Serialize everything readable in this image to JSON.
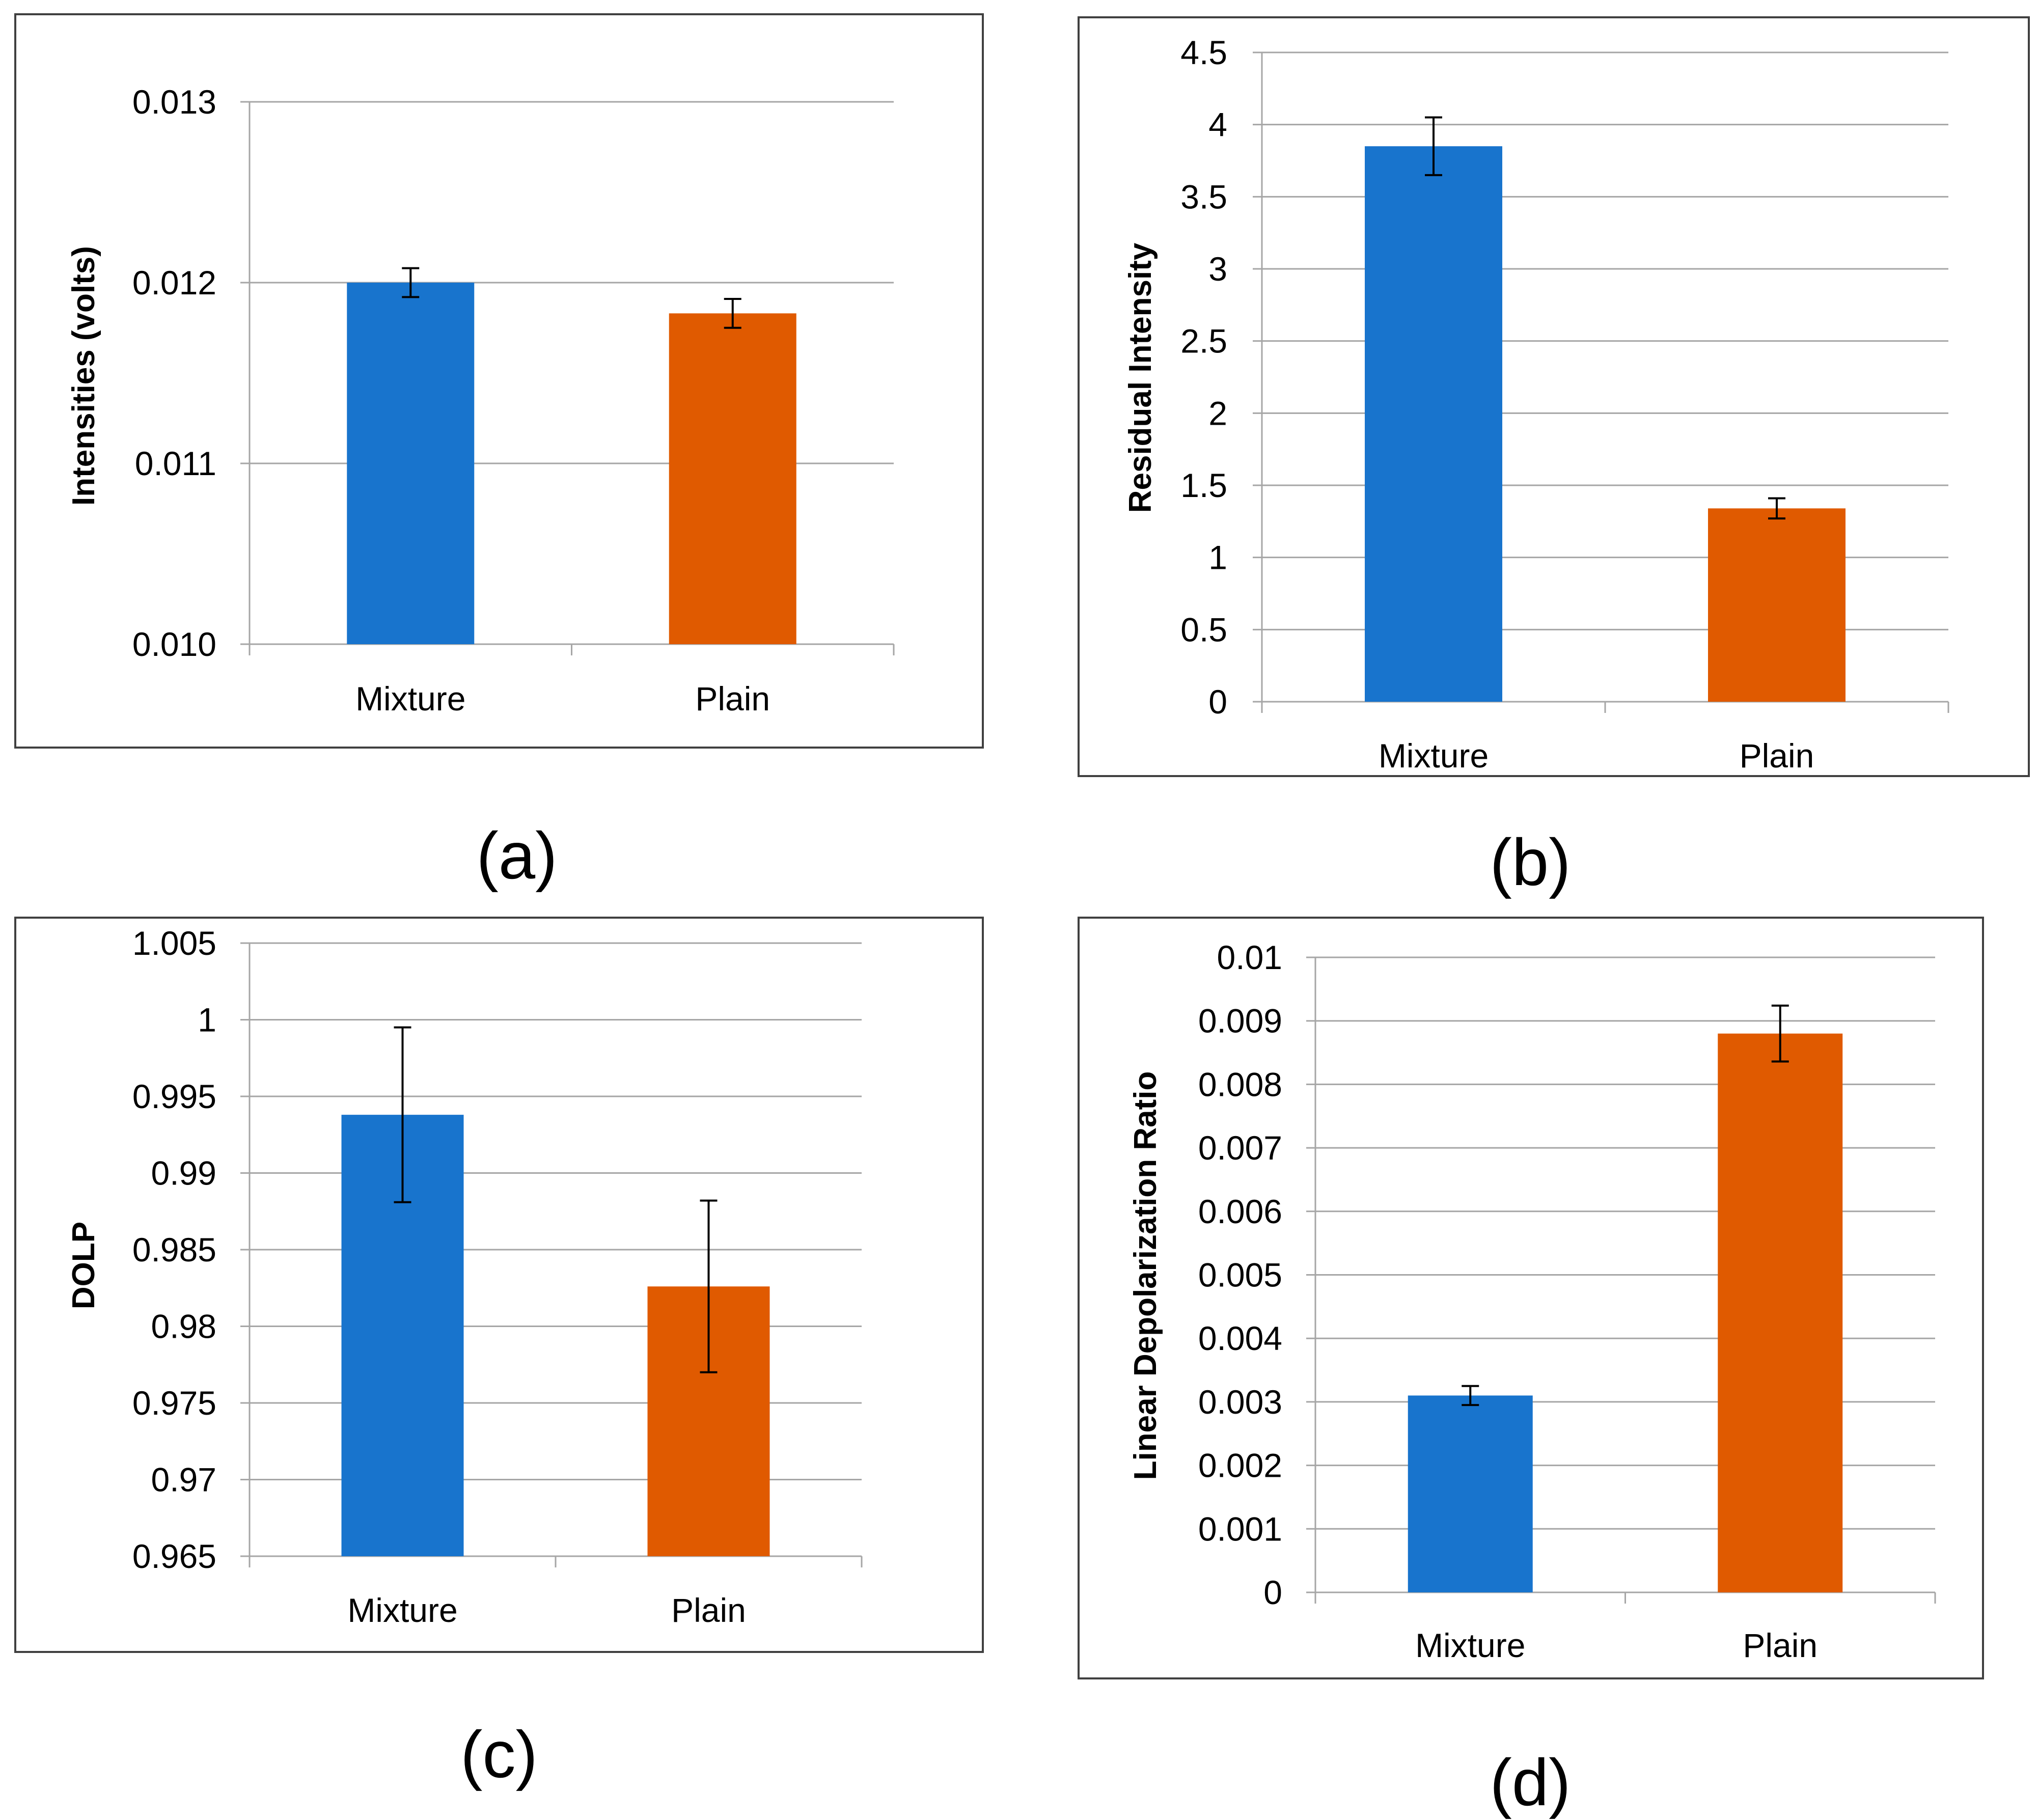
{
  "colors": {
    "Mixture": "#1874CD",
    "Plain": "#E05A00",
    "grid": "#a6a6a6",
    "frame": "#404040"
  },
  "chart_data": [
    {
      "type": "bar",
      "panel": "(a)",
      "categories": [
        "Mixture",
        "Plain"
      ],
      "values": [
        0.012,
        0.01183
      ],
      "errors": [
        8e-05,
        8e-05
      ],
      "title": "",
      "xlabel": "",
      "ylabel": "Intensities (volts)",
      "ylim": [
        0.01,
        0.013
      ],
      "ticks": [
        0.01,
        0.011,
        0.012,
        0.013
      ],
      "tick_labels": [
        "0.010",
        "0.011",
        "0.012",
        "0.013"
      ],
      "grid": true
    },
    {
      "type": "bar",
      "panel": "(b)",
      "categories": [
        "Mixture",
        "Plain"
      ],
      "values": [
        3.85,
        1.34
      ],
      "errors": [
        0.2,
        0.07
      ],
      "title": "",
      "xlabel": "",
      "ylabel": "Residual Intensity",
      "ylim": [
        0,
        4.5
      ],
      "ticks": [
        0,
        0.5,
        1,
        1.5,
        2,
        2.5,
        3,
        3.5,
        4,
        4.5
      ],
      "tick_labels": [
        "0",
        "0.5",
        "1",
        "1.5",
        "2",
        "2.5",
        "3",
        "3.5",
        "4",
        "4.5"
      ],
      "grid": true
    },
    {
      "type": "bar",
      "panel": "(c)",
      "categories": [
        "Mixture",
        "Plain"
      ],
      "values": [
        0.9938,
        0.9826
      ],
      "errors": [
        0.0057,
        0.0056
      ],
      "title": "",
      "xlabel": "",
      "ylabel": "DOLP",
      "ylim": [
        0.965,
        1.005
      ],
      "ticks": [
        0.965,
        0.97,
        0.975,
        0.98,
        0.985,
        0.99,
        0.995,
        1,
        1.005
      ],
      "tick_labels": [
        "0.965",
        "0.97",
        "0.975",
        "0.98",
        "0.985",
        "0.99",
        "0.995",
        "1",
        "1.005"
      ],
      "grid": true
    },
    {
      "type": "bar",
      "panel": "(d)",
      "categories": [
        "Mixture",
        "Plain"
      ],
      "values": [
        0.0031,
        0.0088
      ],
      "errors": [
        0.00015,
        0.00044
      ],
      "title": "",
      "xlabel": "",
      "ylabel": "Linear Depolarization Ratio",
      "ylim": [
        0,
        0.01
      ],
      "ticks": [
        0,
        0.001,
        0.002,
        0.003,
        0.004,
        0.005,
        0.006,
        0.007,
        0.008,
        0.009,
        0.01
      ],
      "tick_labels": [
        "0",
        "0.001",
        "0.002",
        "0.003",
        "0.004",
        "0.005",
        "0.006",
        "0.007",
        "0.008",
        "0.009",
        "0.01"
      ],
      "grid": true
    }
  ]
}
